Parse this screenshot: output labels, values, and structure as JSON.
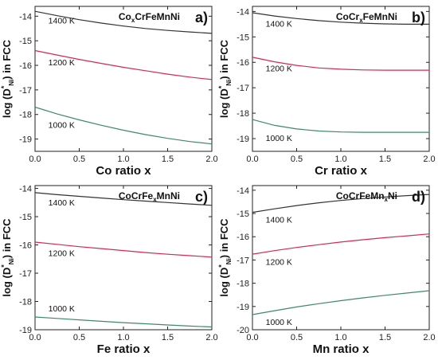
{
  "colors": {
    "1400 K": "#333333",
    "1200 K": "#d8284f",
    "1000 K": "#3d8a6a"
  },
  "chart_data": [
    {
      "type": "line",
      "panel": "a)",
      "composition": "Co",
      "composition_sub": "x",
      "composition_rest": "CrFeMnNi",
      "xlabel": "Co ratio x",
      "ylabel_parts": [
        "log (D",
        "*",
        "Ni",
        ") in FCC"
      ],
      "xlim": [
        0,
        2
      ],
      "ylim": [
        -19.5,
        -13.6
      ],
      "xticks": [
        0.0,
        0.5,
        1.0,
        1.5,
        2.0
      ],
      "xtick_labels": [
        "0.0",
        "0.5",
        "1.0",
        "1.5",
        "2.0"
      ],
      "yticks": [
        -14,
        -15,
        -16,
        -17,
        -18,
        -19
      ],
      "ytick_labels": [
        "-14",
        "-15",
        "-16",
        "-17",
        "-18",
        "-19"
      ],
      "series": [
        {
          "name": "1400 K",
          "x": [
            0,
            0.25,
            0.5,
            0.75,
            1.0,
            1.25,
            1.5,
            1.75,
            2.0
          ],
          "y": [
            -13.8,
            -13.98,
            -14.14,
            -14.28,
            -14.4,
            -14.5,
            -14.58,
            -14.64,
            -14.7
          ]
        },
        {
          "name": "1200 K",
          "x": [
            0,
            0.25,
            0.5,
            0.75,
            1.0,
            1.25,
            1.5,
            1.75,
            2.0
          ],
          "y": [
            -15.4,
            -15.58,
            -15.76,
            -15.92,
            -16.08,
            -16.22,
            -16.36,
            -16.48,
            -16.58
          ]
        },
        {
          "name": "1000 K",
          "x": [
            0,
            0.25,
            0.5,
            0.75,
            1.0,
            1.25,
            1.5,
            1.75,
            2.0
          ],
          "y": [
            -17.7,
            -17.98,
            -18.22,
            -18.44,
            -18.64,
            -18.82,
            -18.97,
            -19.1,
            -19.2
          ]
        }
      ],
      "annotations": [
        {
          "text": "1400 K",
          "x": 0.15,
          "y": -14.3
        },
        {
          "text": "1200 K",
          "x": 0.15,
          "y": -16.0
        },
        {
          "text": "1000 K",
          "x": 0.15,
          "y": -18.55
        }
      ]
    },
    {
      "type": "line",
      "panel": "b)",
      "composition": "CoCr",
      "composition_sub": "x",
      "composition_rest": "FeMnNi",
      "xlabel": "Cr ratio x",
      "ylabel_parts": [
        "log (D",
        "*",
        "Ni",
        ") in FCC"
      ],
      "xlim": [
        0,
        2
      ],
      "ylim": [
        -19.5,
        -13.8
      ],
      "xticks": [
        0.0,
        0.5,
        1.0,
        1.5,
        2.0
      ],
      "xtick_labels": [
        "0.0",
        "0.5",
        "1.0",
        "1.5",
        "2.0"
      ],
      "yticks": [
        -14,
        -15,
        -16,
        -17,
        -18,
        -19
      ],
      "ytick_labels": [
        "-14",
        "-15",
        "-16",
        "-17",
        "-18",
        "-19"
      ],
      "series": [
        {
          "name": "1400 K",
          "x": [
            0,
            0.25,
            0.5,
            0.75,
            1.0,
            1.25,
            1.5,
            1.75,
            2.0
          ],
          "y": [
            -14.05,
            -14.18,
            -14.28,
            -14.36,
            -14.42,
            -14.46,
            -14.49,
            -14.5,
            -14.5
          ]
        },
        {
          "name": "1200 K",
          "x": [
            0,
            0.25,
            0.5,
            0.75,
            1.0,
            1.25,
            1.5,
            1.75,
            2.0
          ],
          "y": [
            -15.8,
            -15.98,
            -16.12,
            -16.22,
            -16.27,
            -16.3,
            -16.31,
            -16.31,
            -16.31
          ]
        },
        {
          "name": "1000 K",
          "x": [
            0,
            0.25,
            0.5,
            0.75,
            1.0,
            1.25,
            1.5,
            1.75,
            2.0
          ],
          "y": [
            -18.25,
            -18.48,
            -18.62,
            -18.7,
            -18.74,
            -18.75,
            -18.75,
            -18.75,
            -18.75
          ]
        }
      ],
      "annotations": [
        {
          "text": "1400 K",
          "x": 0.15,
          "y": -14.6
        },
        {
          "text": "1200 K",
          "x": 0.15,
          "y": -16.35
        },
        {
          "text": "1000 K",
          "x": 0.15,
          "y": -19.1
        }
      ]
    },
    {
      "type": "line",
      "panel": "c)",
      "composition": "CoCrFe",
      "composition_sub": "x",
      "composition_rest": "MnNi",
      "xlabel": "Fe ratio x",
      "ylabel_parts": [
        "log (D",
        "*",
        "Ni",
        ") in FCC"
      ],
      "xlim": [
        0,
        2
      ],
      "ylim": [
        -19.0,
        -13.9
      ],
      "xticks": [
        0.0,
        0.5,
        1.0,
        1.5,
        2.0
      ],
      "xtick_labels": [
        "0.0",
        "0.5",
        "1.0",
        "1.5",
        "2.0"
      ],
      "yticks": [
        -14,
        -15,
        -16,
        -17,
        -18,
        -19
      ],
      "ytick_labels": [
        "-14",
        "-15",
        "-16",
        "-17",
        "-18",
        "-19"
      ],
      "series": [
        {
          "name": "1400 K",
          "x": [
            0,
            0.25,
            0.5,
            0.75,
            1.0,
            1.25,
            1.5,
            1.75,
            2.0
          ],
          "y": [
            -14.15,
            -14.22,
            -14.28,
            -14.34,
            -14.4,
            -14.45,
            -14.5,
            -14.55,
            -14.6
          ]
        },
        {
          "name": "1200 K",
          "x": [
            0,
            0.25,
            0.5,
            0.75,
            1.0,
            1.25,
            1.5,
            1.75,
            2.0
          ],
          "y": [
            -15.9,
            -15.98,
            -16.06,
            -16.13,
            -16.2,
            -16.27,
            -16.33,
            -16.38,
            -16.43
          ]
        },
        {
          "name": "1000 K",
          "x": [
            0,
            0.25,
            0.5,
            0.75,
            1.0,
            1.25,
            1.5,
            1.75,
            2.0
          ],
          "y": [
            -18.55,
            -18.6,
            -18.65,
            -18.7,
            -18.75,
            -18.79,
            -18.83,
            -18.87,
            -18.9
          ]
        }
      ],
      "annotations": [
        {
          "text": "1400 K",
          "x": 0.15,
          "y": -14.6
        },
        {
          "text": "1200 K",
          "x": 0.15,
          "y": -16.4
        },
        {
          "text": "1000 K",
          "x": 0.15,
          "y": -18.35
        }
      ]
    },
    {
      "type": "line",
      "panel": "d)",
      "composition": "CoCrFeMn",
      "composition_sub": "x",
      "composition_rest": "Ni",
      "xlabel": "Mn ratio x",
      "ylabel_parts": [
        "log (D",
        "*",
        "Ni",
        ") in FCC"
      ],
      "xlim": [
        0,
        2
      ],
      "ylim": [
        -20.0,
        -13.8
      ],
      "xticks": [
        0.0,
        0.5,
        1.0,
        1.5,
        2.0
      ],
      "xtick_labels": [
        "0.0",
        "0.5",
        "1.0",
        "1.5",
        "2.0"
      ],
      "yticks": [
        -14,
        -15,
        -16,
        -17,
        -18,
        -19,
        -20
      ],
      "ytick_labels": [
        "-14",
        "-15",
        "-16",
        "-17",
        "-18",
        "-19",
        "-20"
      ],
      "series": [
        {
          "name": "1400 K",
          "x": [
            0,
            0.25,
            0.5,
            0.75,
            1.0,
            1.25,
            1.5,
            1.75,
            2.0
          ],
          "y": [
            -14.95,
            -14.8,
            -14.66,
            -14.54,
            -14.44,
            -14.36,
            -14.29,
            -14.23,
            -14.18
          ]
        },
        {
          "name": "1200 K",
          "x": [
            0,
            0.25,
            0.5,
            0.75,
            1.0,
            1.25,
            1.5,
            1.75,
            2.0
          ],
          "y": [
            -16.75,
            -16.6,
            -16.46,
            -16.34,
            -16.23,
            -16.13,
            -16.04,
            -15.96,
            -15.88
          ]
        },
        {
          "name": "1000 K",
          "x": [
            0,
            0.25,
            0.5,
            0.75,
            1.0,
            1.25,
            1.5,
            1.75,
            2.0
          ],
          "y": [
            -19.35,
            -19.18,
            -19.02,
            -18.88,
            -18.75,
            -18.63,
            -18.52,
            -18.42,
            -18.32
          ]
        }
      ],
      "annotations": [
        {
          "text": "1400 K",
          "x": 0.15,
          "y": -15.4
        },
        {
          "text": "1200 K",
          "x": 0.15,
          "y": -17.2
        },
        {
          "text": "1000 K",
          "x": 0.15,
          "y": -19.8
        }
      ]
    }
  ]
}
